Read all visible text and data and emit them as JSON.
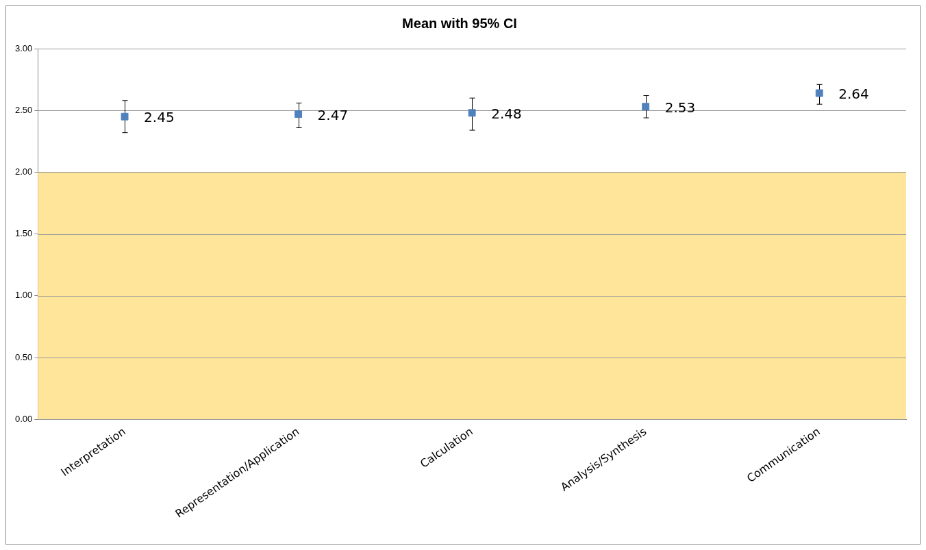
{
  "chart_data": {
    "type": "scatter",
    "title": "Mean with 95% CI",
    "categories": [
      "Interpretation",
      "Representation/Application",
      "Calculation",
      "Analysis/Synthesis",
      "Communication"
    ],
    "values": [
      2.45,
      2.47,
      2.48,
      2.53,
      2.64
    ],
    "color": "#4f81bd",
    "errors": [
      [
        2.32,
        2.58
      ],
      [
        2.36,
        2.56
      ],
      [
        2.34,
        2.6
      ],
      [
        2.44,
        2.62
      ],
      [
        2.55,
        2.71
      ]
    ],
    "ylim": [
      0,
      3
    ],
    "yticks": [
      {
        "value": 0,
        "label": "0.00"
      },
      {
        "value": 0.5,
        "label": "0.50"
      },
      {
        "value": 1,
        "label": "1.00"
      },
      {
        "value": 1.5,
        "label": "1.50"
      },
      {
        "value": 2,
        "label": "2.00"
      },
      {
        "value": 2.5,
        "label": "2.50"
      },
      {
        "value": 3,
        "label": "3.00"
      }
    ],
    "bands": [
      {
        "axis": "y",
        "from": 0,
        "to": 2,
        "color": "#fee599"
      }
    ],
    "grid": "y",
    "data_labels": true,
    "legend": false,
    "marker": "square"
  }
}
